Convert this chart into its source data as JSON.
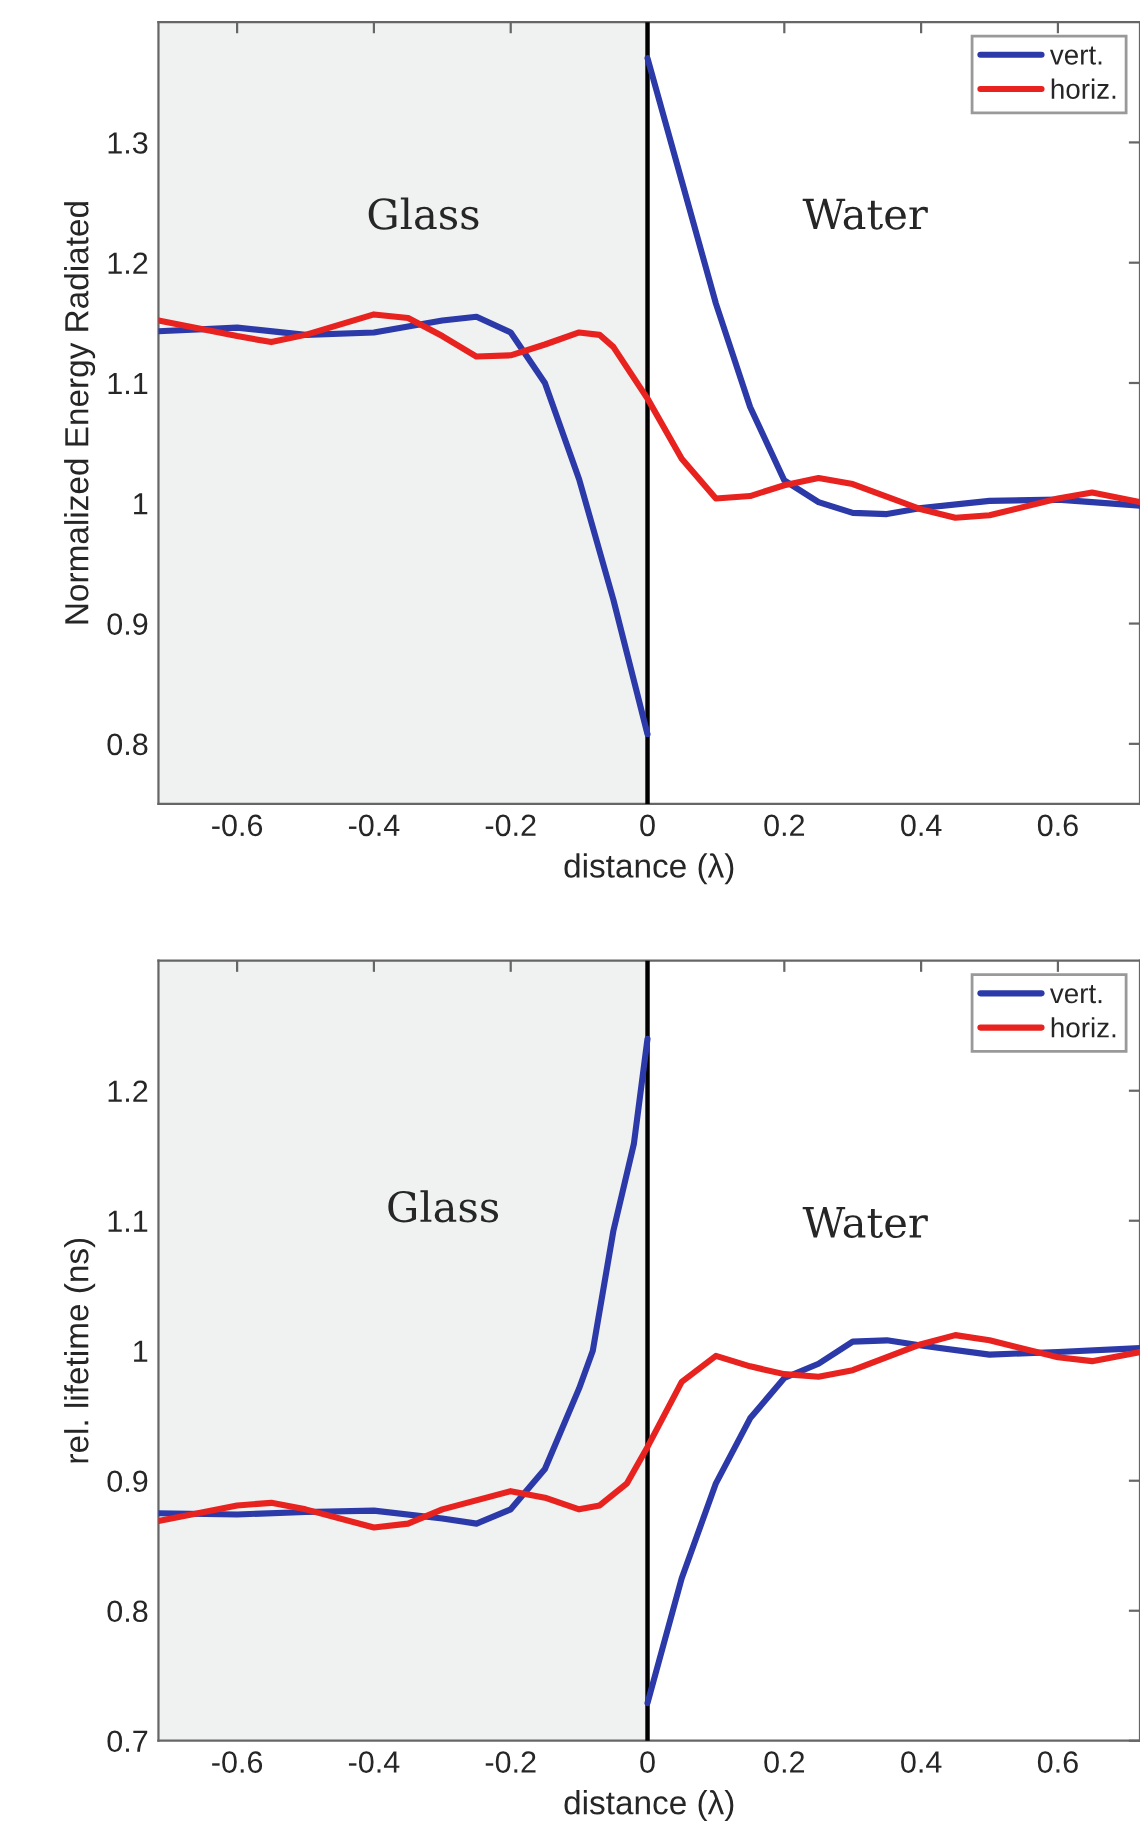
{
  "chart_data": [
    {
      "type": "line",
      "xlabel": "distance (λ)",
      "ylabel": "Normalized Energy Radiated",
      "xlim": [
        -0.715,
        0.72
      ],
      "ylim": [
        0.75,
        1.4
      ],
      "xticks": [
        -0.6,
        -0.4,
        -0.2,
        0,
        0.2,
        0.4,
        0.6
      ],
      "yticks": [
        0.8,
        0.9,
        1,
        1.1,
        1.2,
        1.3
      ],
      "legend": "top right",
      "grid": false,
      "series": [
        {
          "name": "vert.",
          "color": "#2b3aa8",
          "x": [
            -0.715,
            -0.6,
            -0.5,
            -0.4,
            -0.3,
            -0.25,
            -0.2,
            -0.15,
            -0.1,
            -0.05,
            0,
            null,
            0,
            0.05,
            0.1,
            0.15,
            0.2,
            0.25,
            0.3,
            0.35,
            0.4,
            0.5,
            0.6,
            0.72
          ],
          "values": [
            1.143,
            1.146,
            1.14,
            1.142,
            1.152,
            1.155,
            1.142,
            1.1,
            1.02,
            0.92,
            0.808,
            null,
            1.37,
            1.268,
            1.166,
            1.08,
            1.019,
            1.001,
            0.992,
            0.991,
            0.996,
            1.002,
            1.003,
            0.998
          ]
        },
        {
          "name": "horiz.",
          "color": "#e8231f",
          "x": [
            -0.715,
            -0.6,
            -0.55,
            -0.5,
            -0.4,
            -0.35,
            -0.3,
            -0.25,
            -0.2,
            -0.15,
            -0.1,
            -0.07,
            -0.05,
            0,
            0.05,
            0.1,
            0.15,
            0.2,
            0.25,
            0.3,
            0.4,
            0.45,
            0.5,
            0.6,
            0.65,
            0.72
          ],
          "values": [
            1.152,
            1.139,
            1.134,
            1.14,
            1.157,
            1.154,
            1.139,
            1.122,
            1.123,
            1.132,
            1.142,
            1.14,
            1.13,
            1.087,
            1.037,
            1.004,
            1.006,
            1.015,
            1.021,
            1.016,
            0.995,
            0.988,
            0.99,
            1.004,
            1.009,
            1.001
          ]
        }
      ],
      "bands": [
        {
          "axis": "x",
          "from": -0.715,
          "to": 0,
          "color": "#f0f1f1"
        }
      ],
      "ref_lines": [
        {
          "axis": "x",
          "value": 0,
          "color": "#000000"
        }
      ],
      "annotations": [
        "Glass",
        "Water"
      ]
    },
    {
      "type": "line",
      "xlabel": "distance (λ)",
      "ylabel": "rel. lifetime (ns)",
      "xlim": [
        -0.715,
        0.72
      ],
      "ylim": [
        0.7,
        1.3
      ],
      "xticks": [
        -0.6,
        -0.4,
        -0.2,
        0,
        0.2,
        0.4,
        0.6
      ],
      "yticks": [
        0.7,
        0.8,
        0.9,
        1,
        1.1,
        1.2
      ],
      "legend": "top right",
      "grid": false,
      "series": [
        {
          "name": "vert.",
          "color": "#2b3aa8",
          "x": [
            -0.715,
            -0.6,
            -0.5,
            -0.4,
            -0.3,
            -0.25,
            -0.2,
            -0.15,
            -0.1,
            -0.08,
            -0.05,
            -0.02,
            0,
            null,
            0,
            0.05,
            0.1,
            0.15,
            0.2,
            0.25,
            0.3,
            0.35,
            0.4,
            0.5,
            0.6,
            0.72
          ],
          "values": [
            0.875,
            0.874,
            0.876,
            0.877,
            0.871,
            0.867,
            0.878,
            0.909,
            0.971,
            1.0,
            1.092,
            1.159,
            1.24,
            null,
            0.729,
            0.825,
            0.898,
            0.948,
            0.979,
            0.99,
            1.007,
            1.008,
            1.004,
            0.997,
            0.999,
            1.002
          ]
        },
        {
          "name": "horiz.",
          "color": "#e8231f",
          "x": [
            -0.715,
            -0.6,
            -0.55,
            -0.5,
            -0.4,
            -0.35,
            -0.3,
            -0.2,
            -0.15,
            -0.1,
            -0.07,
            -0.03,
            0,
            0.05,
            0.1,
            0.15,
            0.2,
            0.25,
            0.3,
            0.4,
            0.45,
            0.5,
            0.6,
            0.65,
            0.72
          ],
          "values": [
            0.869,
            0.881,
            0.883,
            0.878,
            0.864,
            0.867,
            0.878,
            0.892,
            0.887,
            0.878,
            0.881,
            0.898,
            0.926,
            0.976,
            0.996,
            0.988,
            0.982,
            0.98,
            0.985,
            1.005,
            1.012,
            1.008,
            0.995,
            0.992,
            0.999
          ]
        }
      ],
      "bands": [
        {
          "axis": "x",
          "from": -0.715,
          "to": 0,
          "color": "#f0f1f1"
        }
      ],
      "ref_lines": [
        {
          "axis": "x",
          "value": 0,
          "color": "#000000"
        }
      ],
      "annotations": [
        "Glass",
        "Water"
      ]
    }
  ]
}
